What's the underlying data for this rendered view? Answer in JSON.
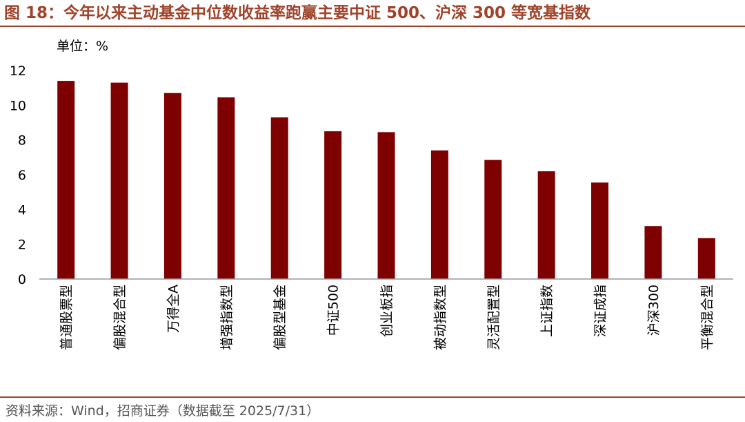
{
  "title": "图 18：今年以来主动基金中位数收益率跑赢主要中证 500、沪深 300 等宽基指数",
  "unit_label": "单位：%",
  "source": "资料来源：Wind，招商证券（数据截至 2025/7/31）",
  "colors": {
    "bar": "#7f0000",
    "title": "#a0432a",
    "axis": "#999999"
  },
  "chart_data": {
    "type": "bar",
    "title": "图 18：今年以来主动基金中位数收益率跑赢主要中证 500、沪深 300 等宽基指数",
    "xlabel": "",
    "ylabel": "单位：%",
    "ylim": [
      0,
      12
    ],
    "yticks": [
      0,
      2,
      4,
      6,
      8,
      10,
      12
    ],
    "grid": false,
    "categories": [
      "普通股票型",
      "偏股混合型",
      "万得全A",
      "增强指数型",
      "偏股型基金",
      "中证500",
      "创业板指",
      "被动指数型",
      "灵活配置型",
      "上证指数",
      "深证成指",
      "沪深300",
      "平衡混合型"
    ],
    "values": [
      11.4,
      11.3,
      10.7,
      10.45,
      9.3,
      8.5,
      8.45,
      7.4,
      6.85,
      6.2,
      5.55,
      3.05,
      2.35
    ]
  }
}
